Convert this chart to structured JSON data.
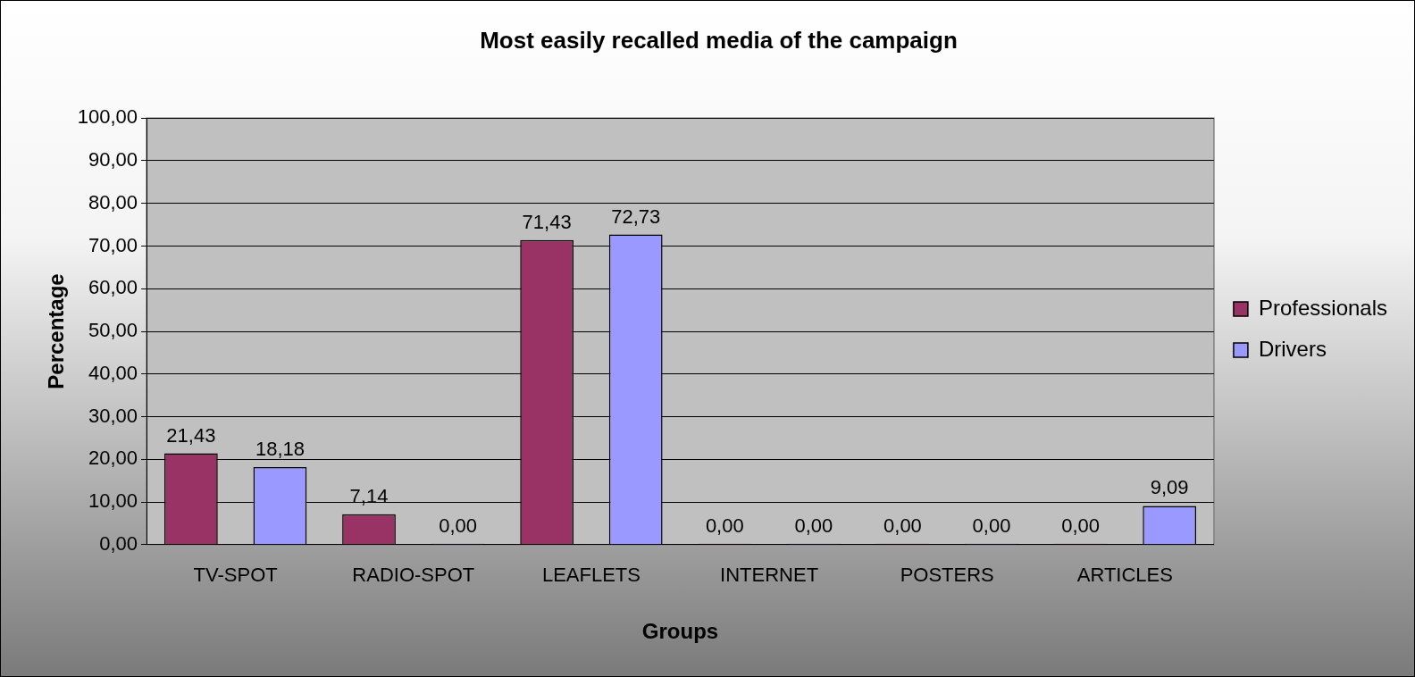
{
  "chart_data": {
    "type": "bar",
    "title": "Most easily recalled media of the campaign",
    "xlabel": "Groups",
    "ylabel": "Percentage",
    "categories": [
      "TV-SPOT",
      "RADIO-SPOT",
      "LEAFLETS",
      "INTERNET",
      "POSTERS",
      "ARTICLES"
    ],
    "series": [
      {
        "name": "Professionals",
        "color": "#993366",
        "values": [
          21.43,
          7.14,
          71.43,
          0,
          0,
          0
        ],
        "value_labels": [
          "21,43",
          "7,14",
          "71,43",
          "0,00",
          "0,00",
          "0,00"
        ]
      },
      {
        "name": "Drivers",
        "color": "#9999ff",
        "values": [
          18.18,
          0,
          72.73,
          0,
          0,
          9.09
        ],
        "value_labels": [
          "18,18",
          "0,00",
          "72,73",
          "0,00",
          "0,00",
          "9,09"
        ]
      }
    ],
    "ylim": [
      0,
      100
    ],
    "yticks": [
      {
        "value": 0,
        "label": "0,00"
      },
      {
        "value": 10,
        "label": "10,00"
      },
      {
        "value": 20,
        "label": "20,00"
      },
      {
        "value": 30,
        "label": "30,00"
      },
      {
        "value": 40,
        "label": "40,00"
      },
      {
        "value": 50,
        "label": "50,00"
      },
      {
        "value": 60,
        "label": "60,00"
      },
      {
        "value": 70,
        "label": "70,00"
      },
      {
        "value": 80,
        "label": "80,00"
      },
      {
        "value": 90,
        "label": "90,00"
      },
      {
        "value": 100,
        "label": "100,00"
      }
    ],
    "grid": "y",
    "legend": "right"
  }
}
